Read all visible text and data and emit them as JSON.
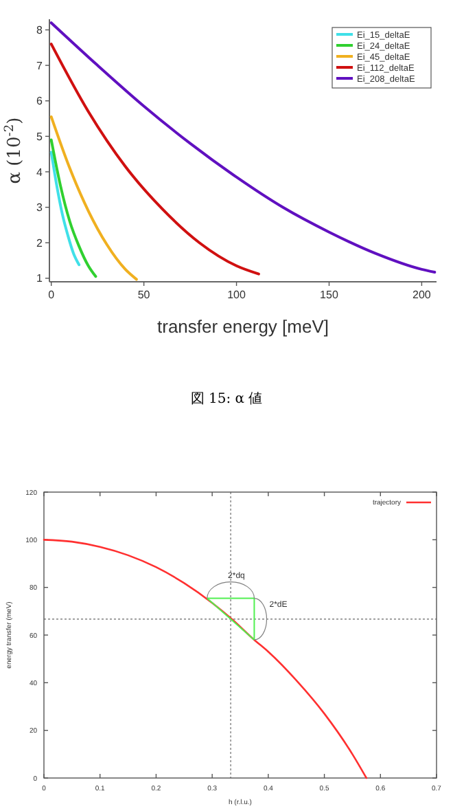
{
  "chart_data": [
    {
      "type": "line",
      "xlabel": "transfer energy [meV]",
      "ylabel": "α (10$^{-2}$)",
      "xlim": [
        -1,
        208
      ],
      "ylim": [
        0.9,
        8.3
      ],
      "xticks": [
        0,
        50,
        100,
        150,
        200
      ],
      "yticks": [
        1,
        2,
        3,
        4,
        5,
        6,
        7,
        8
      ],
      "grid": false,
      "legend": "top right",
      "marker": "none",
      "line_style": "solid",
      "annotations": [
        "図 15: α 値"
      ],
      "series": [
        {
          "name": "Ei_15_deltaE",
          "color": "#40e0e8",
          "x": [
            0,
            3,
            6,
            9,
            12,
            15
          ],
          "values": [
            4.55,
            3.6,
            2.8,
            2.2,
            1.7,
            1.38
          ]
        },
        {
          "name": "Ei_24_deltaE",
          "color": "#30d030",
          "x": [
            0,
            5,
            10,
            15,
            20,
            24
          ],
          "values": [
            4.9,
            3.6,
            2.6,
            1.9,
            1.35,
            1.05
          ]
        },
        {
          "name": "Ei_45_deltaE",
          "color": "#f0b020",
          "x": [
            0,
            10,
            20,
            30,
            40,
            46
          ],
          "values": [
            5.55,
            4.1,
            2.9,
            1.95,
            1.25,
            0.97
          ]
        },
        {
          "name": "Ei_112_deltaE",
          "color": "#d01010",
          "x": [
            0,
            20,
            40,
            60,
            80,
            100,
            112
          ],
          "values": [
            7.6,
            5.7,
            4.15,
            2.95,
            2.0,
            1.35,
            1.12
          ]
        },
        {
          "name": "Ei_208_deltaE",
          "color": "#6010c0",
          "x": [
            0,
            25,
            50,
            75,
            100,
            125,
            150,
            175,
            200,
            207
          ],
          "values": [
            8.2,
            7.0,
            5.85,
            4.8,
            3.85,
            3.0,
            2.3,
            1.7,
            1.25,
            1.17
          ]
        }
      ]
    },
    {
      "type": "line",
      "xlabel": "h (r.l.u.)",
      "ylabel": "energy transfer (meV)",
      "xlim": [
        0,
        0.7
      ],
      "ylim": [
        0,
        120
      ],
      "xticks": [
        0,
        0.1,
        0.2,
        0.3,
        0.4,
        0.5,
        0.6,
        0.7
      ],
      "yticks": [
        0,
        20,
        40,
        60,
        80,
        100,
        120
      ],
      "grid": false,
      "legend": "top right",
      "marker": "none",
      "line_style": "solid",
      "ref_lines": [
        {
          "axis": "x",
          "value": 0.333,
          "color": "#808080",
          "line_style": "dotted"
        },
        {
          "axis": "y",
          "value": 66.7,
          "color": "#808080",
          "line_style": "dotted"
        }
      ],
      "annotations": [
        "2*dq",
        "2*dE"
      ],
      "series": [
        {
          "name": "trajectory",
          "color": "#ff3030",
          "x": [
            0,
            0.05,
            0.1,
            0.15,
            0.2,
            0.25,
            0.3,
            0.335,
            0.375,
            0.4,
            0.45,
            0.5,
            0.55,
            0.575
          ],
          "values": [
            100,
            99.2,
            97,
            93.5,
            88.5,
            81.8,
            73.5,
            66.7,
            58,
            53,
            41,
            27,
            10,
            0
          ]
        }
      ]
    }
  ]
}
